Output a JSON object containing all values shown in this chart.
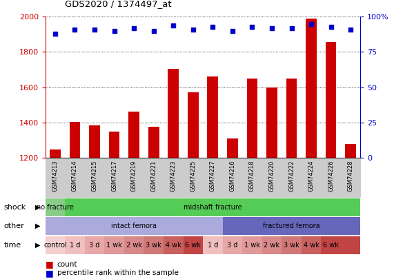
{
  "title": "GDS2020 / 1374497_at",
  "samples": [
    "GSM74213",
    "GSM74214",
    "GSM74215",
    "GSM74217",
    "GSM74219",
    "GSM74221",
    "GSM74223",
    "GSM74225",
    "GSM74227",
    "GSM74216",
    "GSM74218",
    "GSM74220",
    "GSM74222",
    "GSM74224",
    "GSM74226",
    "GSM74228"
  ],
  "counts": [
    1248,
    1403,
    1385,
    1347,
    1463,
    1375,
    1705,
    1570,
    1660,
    1307,
    1648,
    1600,
    1648,
    1990,
    1855,
    1278
  ],
  "percentile_ranks": [
    88,
    91,
    91,
    90,
    92,
    90,
    94,
    91,
    93,
    90,
    93,
    92,
    92,
    95,
    93,
    91
  ],
  "bar_color": "#cc0000",
  "dot_color": "#0000cc",
  "ylim_left": [
    1200,
    2000
  ],
  "ylim_right": [
    0,
    100
  ],
  "yticks_left": [
    1200,
    1400,
    1600,
    1800,
    2000
  ],
  "yticks_right": [
    0,
    25,
    50,
    75,
    100
  ],
  "shock_labels": [
    {
      "text": "no fracture",
      "start": 0,
      "end": 1,
      "color": "#88cc88"
    },
    {
      "text": "midshaft fracture",
      "start": 1,
      "end": 16,
      "color": "#55cc55"
    }
  ],
  "other_labels": [
    {
      "text": "intact femora",
      "start": 0,
      "end": 9,
      "color": "#aaaadd"
    },
    {
      "text": "fractured femora",
      "start": 9,
      "end": 16,
      "color": "#6666bb"
    }
  ],
  "time_labels": [
    {
      "text": "control",
      "start": 0,
      "end": 1,
      "color": "#f5d0d0"
    },
    {
      "text": "1 d",
      "start": 1,
      "end": 2,
      "color": "#f0c0c0"
    },
    {
      "text": "3 d",
      "start": 2,
      "end": 3,
      "color": "#e8a8a8"
    },
    {
      "text": "1 wk",
      "start": 3,
      "end": 4,
      "color": "#e09898"
    },
    {
      "text": "2 wk",
      "start": 4,
      "end": 5,
      "color": "#d88888"
    },
    {
      "text": "3 wk",
      "start": 5,
      "end": 6,
      "color": "#d07878"
    },
    {
      "text": "4 wk",
      "start": 6,
      "end": 7,
      "color": "#c86060"
    },
    {
      "text": "6 wk",
      "start": 7,
      "end": 8,
      "color": "#c04444"
    },
    {
      "text": "1 d",
      "start": 8,
      "end": 9,
      "color": "#f0c0c0"
    },
    {
      "text": "3 d",
      "start": 9,
      "end": 10,
      "color": "#e8a8a8"
    },
    {
      "text": "1 wk",
      "start": 10,
      "end": 11,
      "color": "#e09898"
    },
    {
      "text": "2 wk",
      "start": 11,
      "end": 12,
      "color": "#d88888"
    },
    {
      "text": "3 wk",
      "start": 12,
      "end": 13,
      "color": "#d07878"
    },
    {
      "text": "4 wk",
      "start": 13,
      "end": 14,
      "color": "#c86060"
    },
    {
      "text": "6 wk",
      "start": 14,
      "end": 15,
      "color": "#c04444"
    },
    {
      "text": "",
      "start": 15,
      "end": 16,
      "color": "#c04444"
    }
  ],
  "background_color": "#ffffff",
  "tick_color_left": "#cc0000",
  "tick_color_right": "#0000cc",
  "sample_label_bg": "#cccccc"
}
